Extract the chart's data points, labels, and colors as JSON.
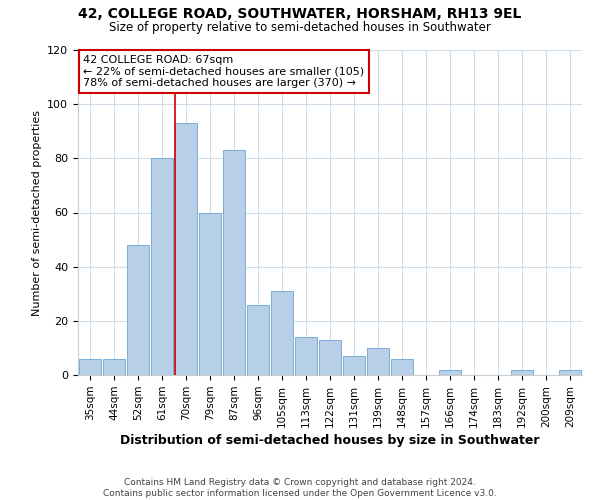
{
  "title": "42, COLLEGE ROAD, SOUTHWATER, HORSHAM, RH13 9EL",
  "subtitle": "Size of property relative to semi-detached houses in Southwater",
  "xlabel": "Distribution of semi-detached houses by size in Southwater",
  "ylabel": "Number of semi-detached properties",
  "bin_labels": [
    "35sqm",
    "44sqm",
    "52sqm",
    "61sqm",
    "70sqm",
    "79sqm",
    "87sqm",
    "96sqm",
    "105sqm",
    "113sqm",
    "122sqm",
    "131sqm",
    "139sqm",
    "148sqm",
    "157sqm",
    "166sqm",
    "174sqm",
    "183sqm",
    "192sqm",
    "200sqm",
    "209sqm"
  ],
  "bar_values": [
    6,
    6,
    48,
    80,
    93,
    60,
    83,
    26,
    31,
    14,
    13,
    7,
    10,
    6,
    0,
    2,
    0,
    0,
    2,
    0,
    2
  ],
  "bar_color": "#b8cfe8",
  "bar_edge_color": "#7aaed6",
  "property_line_bin_index": 4,
  "annotation_title": "42 COLLEGE ROAD: 67sqm",
  "annotation_line1": "← 22% of semi-detached houses are smaller (105)",
  "annotation_line2": "78% of semi-detached houses are larger (370) →",
  "annotation_box_color": "#ffffff",
  "annotation_box_edge_color": "#cc0000",
  "property_line_color": "#cc0000",
  "ylim": [
    0,
    120
  ],
  "yticks": [
    0,
    20,
    40,
    60,
    80,
    100,
    120
  ],
  "footer_line1": "Contains HM Land Registry data © Crown copyright and database right 2024.",
  "footer_line2": "Contains public sector information licensed under the Open Government Licence v3.0.",
  "background_color": "#ffffff",
  "grid_color": "#d0dce8"
}
